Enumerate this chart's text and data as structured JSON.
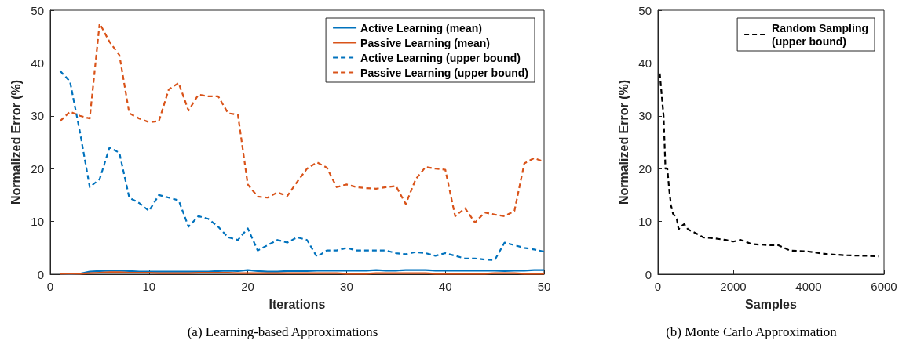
{
  "chart_data": [
    {
      "type": "line",
      "title": "(a) Learning-based Approximations",
      "xlabel": "Iterations",
      "ylabel": "Normalized Error (%)",
      "x": [
        1,
        2,
        3,
        4,
        5,
        6,
        7,
        8,
        9,
        10,
        11,
        12,
        13,
        14,
        15,
        16,
        17,
        18,
        19,
        20,
        21,
        22,
        23,
        24,
        25,
        26,
        27,
        28,
        29,
        30,
        31,
        32,
        33,
        34,
        35,
        36,
        37,
        38,
        39,
        40,
        41,
        42,
        43,
        44,
        45,
        46,
        47,
        48,
        49,
        50
      ],
      "series": [
        {
          "name": "Active Learning (mean)",
          "color": "#0072bd",
          "line_style": "solid",
          "values": [
            0.1,
            0,
            0.1,
            0.5,
            0.6,
            0.7,
            0.7,
            0.6,
            0.5,
            0.5,
            0.5,
            0.5,
            0.5,
            0.5,
            0.5,
            0.5,
            0.6,
            0.7,
            0.6,
            0.8,
            0.6,
            0.5,
            0.5,
            0.6,
            0.6,
            0.6,
            0.7,
            0.7,
            0.7,
            0.7,
            0.7,
            0.7,
            0.8,
            0.7,
            0.7,
            0.8,
            0.8,
            0.8,
            0.7,
            0.7,
            0.7,
            0.7,
            0.7,
            0.7,
            0.7,
            0.6,
            0.7,
            0.7,
            0.8,
            0.8
          ]
        },
        {
          "name": "Passive Learning (mean)",
          "color": "#d95319",
          "line_style": "solid",
          "values": [
            0.1,
            0.1,
            0.1,
            0.2,
            0.3,
            0.4,
            0.4,
            0.3,
            0.3,
            0.3,
            0.2,
            0.2,
            0.2,
            0.2,
            0.3,
            0.3,
            0.3,
            0.3,
            0.2,
            0.2,
            0.2,
            0.2,
            0.2,
            0.2,
            0.2,
            0.2,
            0.2,
            0.2,
            0.2,
            0.1,
            0.1,
            0.1,
            0.2,
            0.2,
            0.2,
            0.2,
            0.2,
            0.2,
            0.1,
            0.1,
            0.1,
            0.1,
            0.1,
            0.1,
            0.2,
            0.2,
            0.2,
            0.1,
            0.1,
            0.1
          ]
        },
        {
          "name": "Active Learning (upper bound)",
          "color": "#0072bd",
          "line_style": "dashed",
          "values": [
            38.5,
            36.5,
            27,
            16.5,
            18,
            24,
            23,
            14.5,
            13.5,
            12,
            15,
            14.5,
            14,
            9,
            11,
            10.5,
            9,
            7,
            6.5,
            8.7,
            4.5,
            5.5,
            6.5,
            6,
            7,
            6.5,
            3.3,
            4.5,
            4.5,
            5,
            4.5,
            4.5,
            4.5,
            4.5,
            4,
            3.8,
            4.2,
            4,
            3.5,
            4,
            3.5,
            3,
            3,
            2.8,
            2.7,
            6,
            5.5,
            5,
            4.7,
            4.3
          ]
        },
        {
          "name": "Passive Learning (upper bound)",
          "color": "#d95319",
          "line_style": "dashed",
          "values": [
            29,
            30.8,
            30,
            29.5,
            47.5,
            44,
            41.5,
            30.5,
            29.5,
            28.8,
            29,
            35,
            36.2,
            31,
            34,
            33.7,
            33.7,
            30.5,
            30.2,
            17,
            14.7,
            14.5,
            15.5,
            14.8,
            17.5,
            20,
            21.2,
            20.2,
            16.5,
            17,
            16.5,
            16.3,
            16.2,
            16.5,
            16.7,
            13.3,
            18,
            20.3,
            20,
            19.8,
            11,
            12.5,
            9.8,
            11.7,
            11.3,
            11,
            12,
            21,
            22,
            21.3
          ]
        }
      ],
      "xlim": [
        0,
        50
      ],
      "xticks": [
        0,
        10,
        20,
        30,
        40,
        50
      ],
      "ylim": [
        0,
        50
      ],
      "yticks": [
        0,
        10,
        20,
        30,
        40,
        50
      ],
      "grid": false,
      "legend": "top right"
    },
    {
      "type": "line",
      "title": "(b) Monte Carlo Approximation",
      "xlabel": "Samples",
      "ylabel": "Normalized Error (%)",
      "x": [
        50,
        100,
        150,
        200,
        250,
        300,
        350,
        400,
        450,
        500,
        550,
        600,
        700,
        800,
        1000,
        1200,
        1500,
        1800,
        2000,
        2200,
        2500,
        3000,
        3200,
        3500,
        4000,
        4500,
        5000,
        5500,
        5850
      ],
      "series": [
        {
          "name": "Random Sampling\n(upper bound)",
          "color": "#000000",
          "line_style": "dashed",
          "values": [
            38,
            34,
            30,
            20,
            20,
            16,
            13,
            11.5,
            11,
            10.5,
            8.5,
            9,
            9.5,
            8.5,
            7.8,
            7,
            6.8,
            6.5,
            6.2,
            6.5,
            5.7,
            5.5,
            5.5,
            4.5,
            4.3,
            3.8,
            3.6,
            3.5,
            3.4
          ]
        }
      ],
      "xlim": [
        0,
        6000
      ],
      "xticks": [
        0,
        2000,
        4000,
        6000
      ],
      "ylim": [
        0,
        50
      ],
      "yticks": [
        0,
        10,
        20,
        30,
        40,
        50
      ],
      "grid": false,
      "legend": "top right"
    }
  ]
}
